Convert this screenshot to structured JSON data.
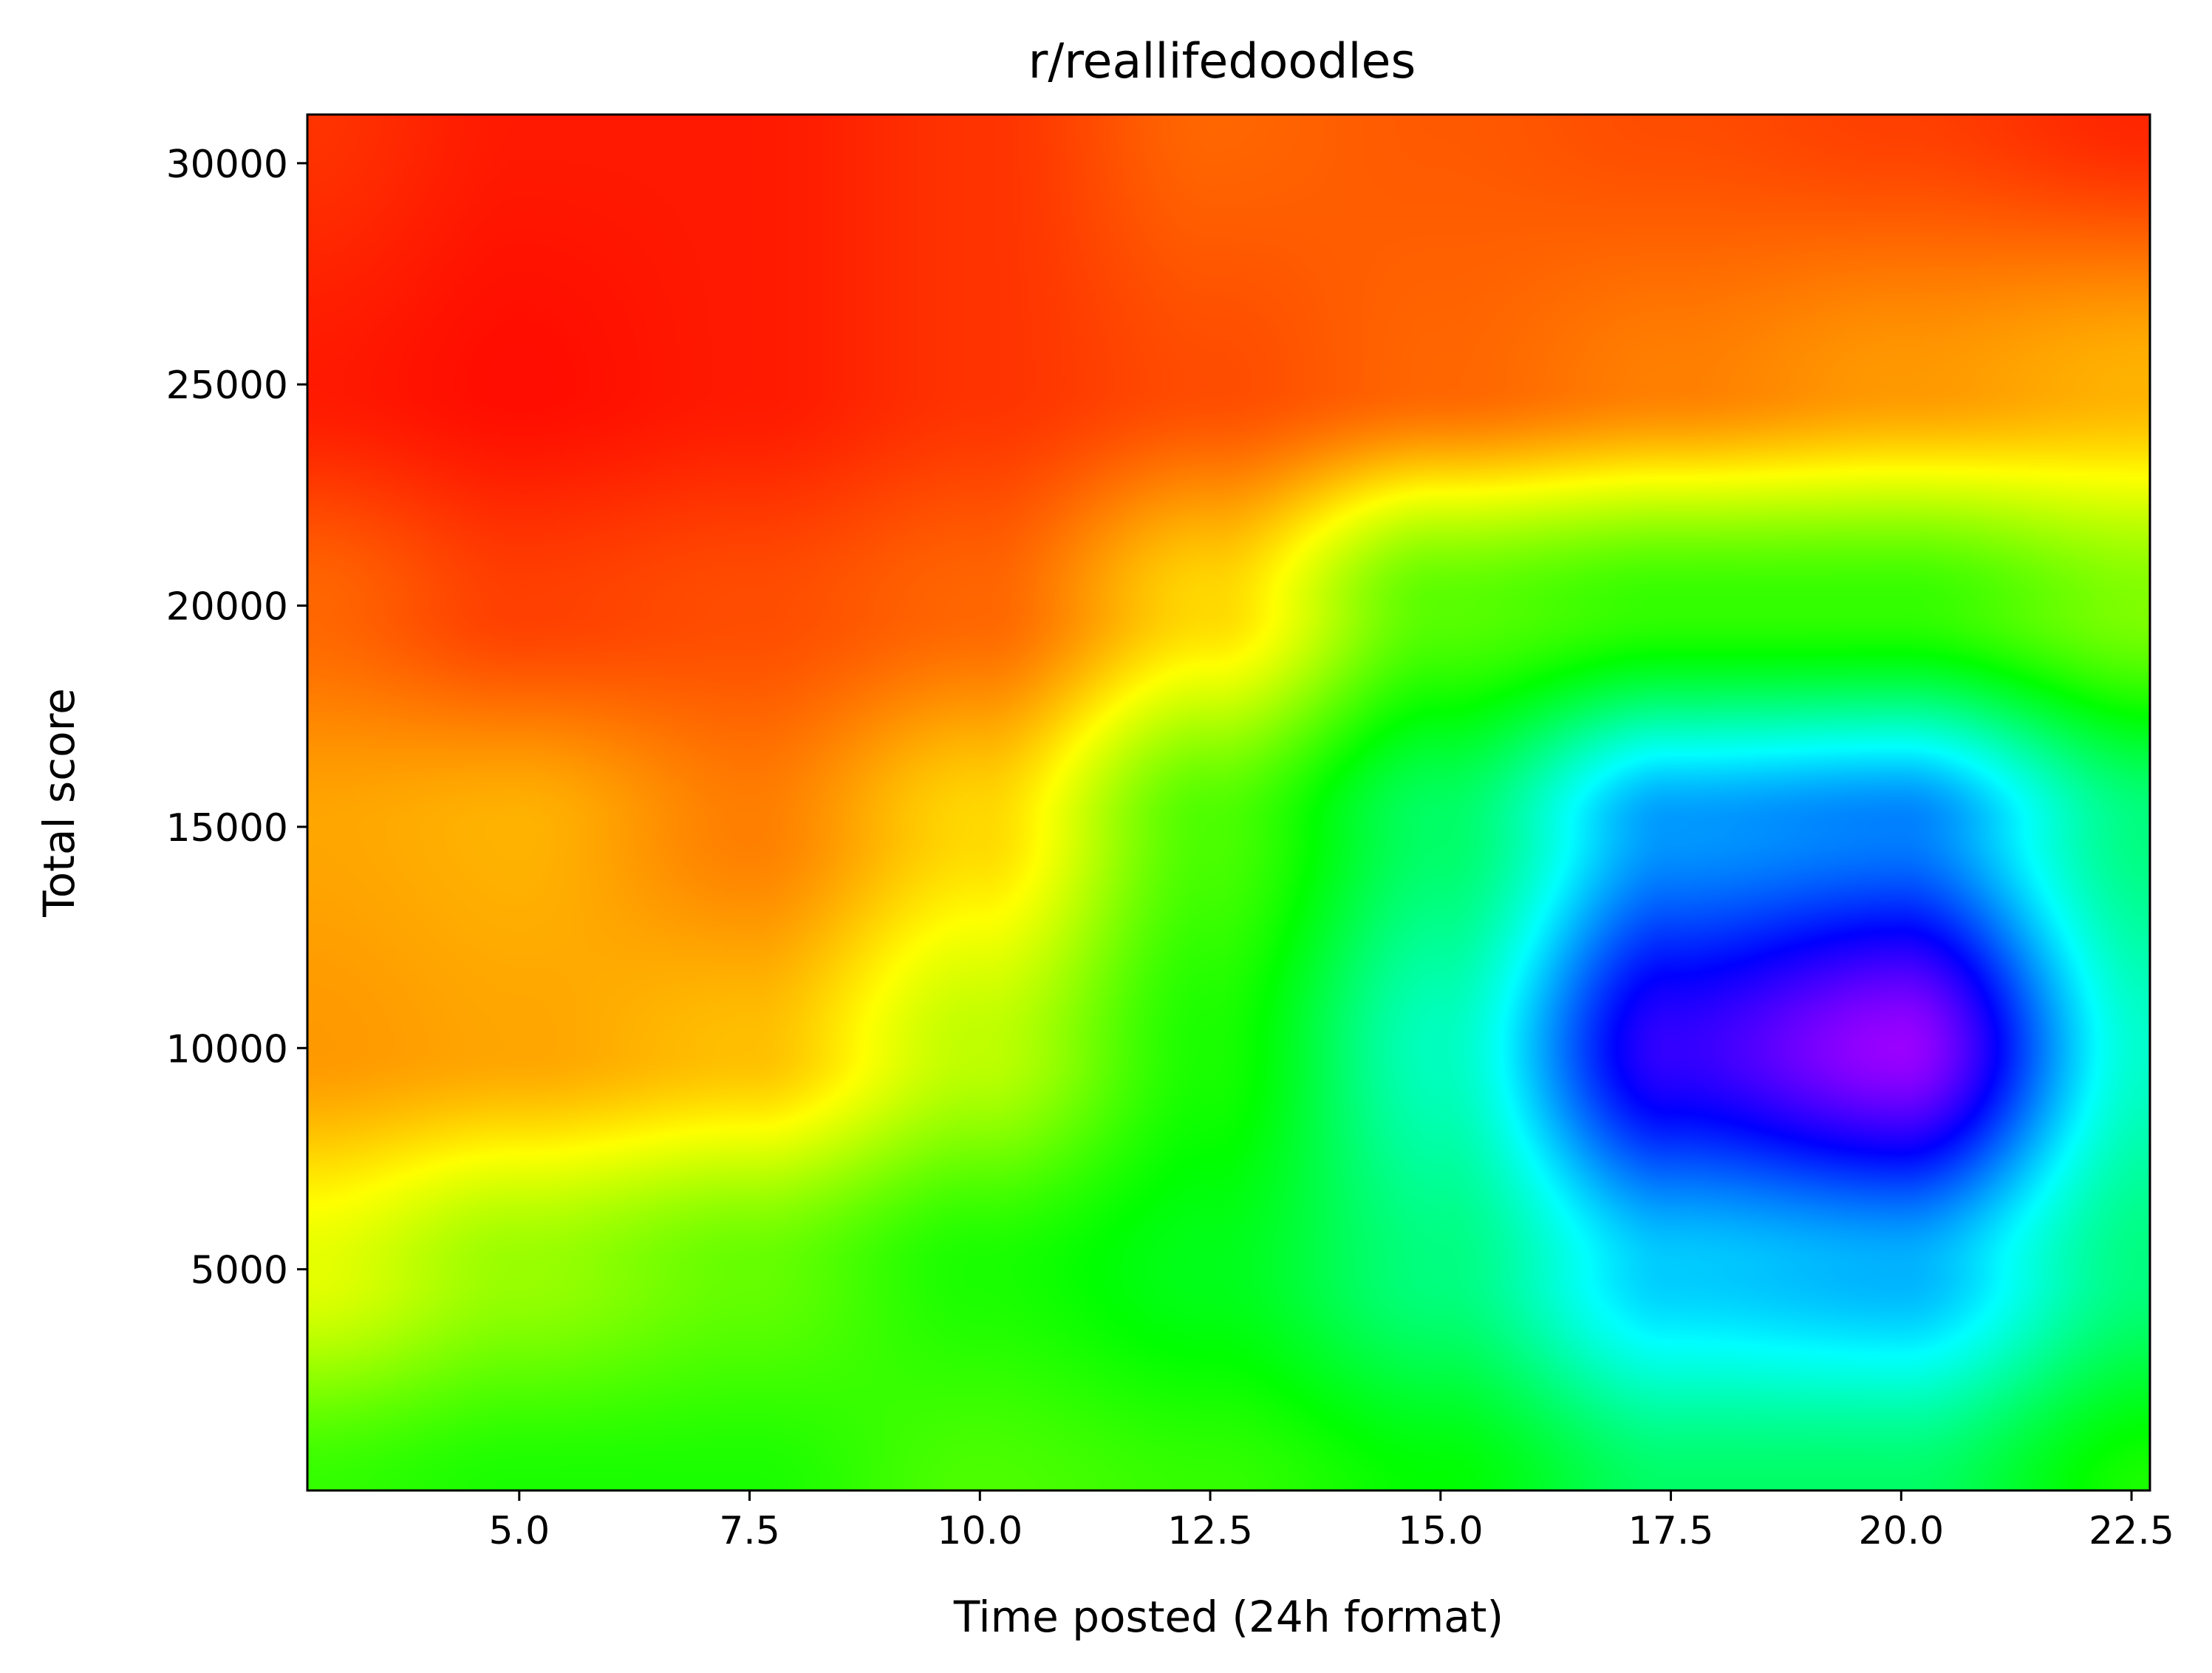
{
  "chart_data": {
    "type": "heatmap",
    "title": "r/reallifedoodles",
    "xlabel": "Time posted (24h format)",
    "ylabel": "Total score",
    "xlim": [
      2.7,
      22.7
    ],
    "ylim": [
      0,
      31100
    ],
    "x_ticks": [
      5.0,
      7.5,
      10.0,
      12.5,
      15.0,
      17.5,
      20.0,
      22.5
    ],
    "x_tick_labels": [
      "5.0",
      "7.5",
      "10.0",
      "12.5",
      "15.0",
      "17.5",
      "20.0",
      "22.5"
    ],
    "y_ticks": [
      5000,
      10000,
      15000,
      20000,
      25000,
      30000
    ],
    "y_tick_labels": [
      "5000",
      "10000",
      "15000",
      "20000",
      "25000",
      "30000"
    ],
    "colormap": "gist_rainbow",
    "grid": false,
    "density_peaks": [
      {
        "x": 18.7,
        "y": 11000,
        "level": "highest (magenta)"
      },
      {
        "x": 4.0,
        "y": 14000,
        "level": "local (yellow)"
      }
    ],
    "value_grid": {
      "x": [
        2.7,
        5.0,
        7.5,
        10.0,
        12.5,
        15.0,
        17.5,
        20.0,
        22.7
      ],
      "y": [
        0,
        5000,
        10000,
        15000,
        20000,
        25000,
        31100
      ],
      "z": [
        [
          0.36,
          0.38,
          0.38,
          0.34,
          0.36,
          0.4,
          0.48,
          0.48,
          0.38
        ],
        [
          0.22,
          0.28,
          0.32,
          0.38,
          0.42,
          0.5,
          0.64,
          0.66,
          0.5
        ],
        [
          0.12,
          0.13,
          0.15,
          0.25,
          0.38,
          0.55,
          0.84,
          0.92,
          0.56
        ],
        [
          0.13,
          0.14,
          0.1,
          0.17,
          0.34,
          0.48,
          0.68,
          0.7,
          0.5
        ],
        [
          0.08,
          0.05,
          0.06,
          0.08,
          0.17,
          0.33,
          0.36,
          0.36,
          0.3
        ],
        [
          0.02,
          0.01,
          0.02,
          0.04,
          0.06,
          0.08,
          0.1,
          0.12,
          0.14
        ],
        [
          0.04,
          0.02,
          0.02,
          0.04,
          0.08,
          0.07,
          0.06,
          0.05,
          0.03
        ]
      ]
    }
  }
}
